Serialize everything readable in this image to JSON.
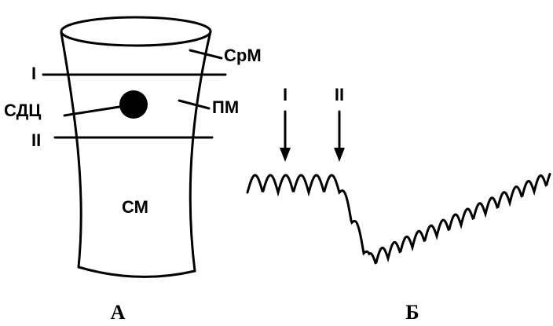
{
  "panel_a": {
    "labels": {
      "outer": "СрМ",
      "level_1": "I",
      "sinus": "СДЦ",
      "inner": "ПМ",
      "level_2": "II",
      "body": "СМ"
    },
    "caption": "А"
  },
  "panel_b": {
    "arrows": [
      "I",
      "II"
    ],
    "caption": "Б"
  }
}
